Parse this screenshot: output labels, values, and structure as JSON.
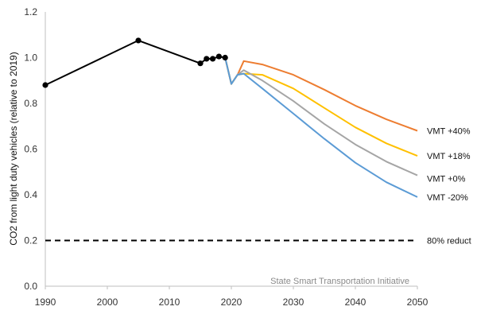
{
  "chart_data": {
    "type": "line",
    "title": "",
    "xlabel": "",
    "ylabel": "CO2 from light duty vehicles (relative to 2019)",
    "xlim": [
      1990,
      2050
    ],
    "ylim": [
      0,
      1.2
    ],
    "xticks": [
      "1990",
      "2000",
      "2010",
      "2020",
      "2030",
      "2040",
      "2050"
    ],
    "yticks": [
      "0.0",
      "0.2",
      "0.4",
      "0.6",
      "0.8",
      "1.0",
      "1.2"
    ],
    "grid": false,
    "legend": "series labels at right end of lines",
    "credit": "State Smart Transportation Initiative",
    "historical": {
      "color": "#000000",
      "markers": true,
      "points": [
        {
          "x": 1990,
          "y": 0.88
        },
        {
          "x": 2005,
          "y": 1.075
        },
        {
          "x": 2015,
          "y": 0.975
        },
        {
          "x": 2016,
          "y": 0.995
        },
        {
          "x": 2017,
          "y": 0.995
        },
        {
          "x": 2018,
          "y": 1.005
        },
        {
          "x": 2019,
          "y": 1.0
        }
      ]
    },
    "series": [
      {
        "name": "VMT +40%",
        "color": "#ed7d31",
        "points": [
          {
            "x": 2019,
            "y": 1.0
          },
          {
            "x": 2020,
            "y": 0.885
          },
          {
            "x": 2021,
            "y": 0.925
          },
          {
            "x": 2022,
            "y": 0.985
          },
          {
            "x": 2025,
            "y": 0.97
          },
          {
            "x": 2030,
            "y": 0.925
          },
          {
            "x": 2035,
            "y": 0.86
          },
          {
            "x": 2040,
            "y": 0.79
          },
          {
            "x": 2045,
            "y": 0.73
          },
          {
            "x": 2050,
            "y": 0.68
          }
        ]
      },
      {
        "name": "VMT +18%",
        "color": "#ffc000",
        "points": [
          {
            "x": 2019,
            "y": 1.0
          },
          {
            "x": 2020,
            "y": 0.885
          },
          {
            "x": 2021,
            "y": 0.925
          },
          {
            "x": 2022,
            "y": 0.93
          },
          {
            "x": 2025,
            "y": 0.925
          },
          {
            "x": 2030,
            "y": 0.865
          },
          {
            "x": 2035,
            "y": 0.78
          },
          {
            "x": 2040,
            "y": 0.695
          },
          {
            "x": 2045,
            "y": 0.625
          },
          {
            "x": 2050,
            "y": 0.57
          }
        ]
      },
      {
        "name": "VMT +0%",
        "color": "#a5a5a5",
        "points": [
          {
            "x": 2019,
            "y": 1.0
          },
          {
            "x": 2020,
            "y": 0.885
          },
          {
            "x": 2021,
            "y": 0.925
          },
          {
            "x": 2022,
            "y": 0.945
          },
          {
            "x": 2025,
            "y": 0.9
          },
          {
            "x": 2030,
            "y": 0.81
          },
          {
            "x": 2035,
            "y": 0.71
          },
          {
            "x": 2040,
            "y": 0.62
          },
          {
            "x": 2045,
            "y": 0.545
          },
          {
            "x": 2050,
            "y": 0.485
          }
        ]
      },
      {
        "name": "VMT -20%",
        "color": "#5b9bd5",
        "points": [
          {
            "x": 2019,
            "y": 1.0
          },
          {
            "x": 2020,
            "y": 0.885
          },
          {
            "x": 2021,
            "y": 0.925
          },
          {
            "x": 2022,
            "y": 0.93
          },
          {
            "x": 2025,
            "y": 0.865
          },
          {
            "x": 2030,
            "y": 0.755
          },
          {
            "x": 2035,
            "y": 0.645
          },
          {
            "x": 2040,
            "y": 0.54
          },
          {
            "x": 2045,
            "y": 0.455
          },
          {
            "x": 2050,
            "y": 0.39
          }
        ]
      }
    ],
    "reference_line": {
      "label": "80% reduct",
      "y": 0.2,
      "color": "#000000",
      "style": "dashed"
    }
  }
}
